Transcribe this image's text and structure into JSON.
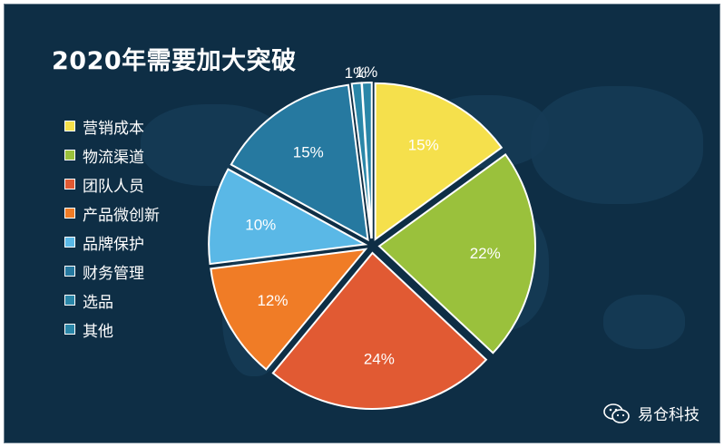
{
  "chart_data": {
    "type": "pie",
    "title": "2020年需要加大突破",
    "categories": [
      "营销成本",
      "物流渠道",
      "团队人员",
      "产品微创新",
      "品牌保护",
      "财务管理",
      "选品",
      "其他"
    ],
    "values": [
      15,
      22,
      24,
      12,
      10,
      15,
      1,
      1
    ],
    "labels": [
      "15%",
      "22%",
      "24%",
      "12%",
      "10%",
      "15%",
      "1%",
      "1%"
    ],
    "colors": [
      "#f5e04c",
      "#9ac13c",
      "#e15a33",
      "#f07c26",
      "#5ab8e6",
      "#2679a0",
      "#2a86a8",
      "#2a86a8"
    ],
    "legend_position": "left"
  },
  "watermark": {
    "icon": "wechat-icon",
    "text": "易仓科技"
  }
}
